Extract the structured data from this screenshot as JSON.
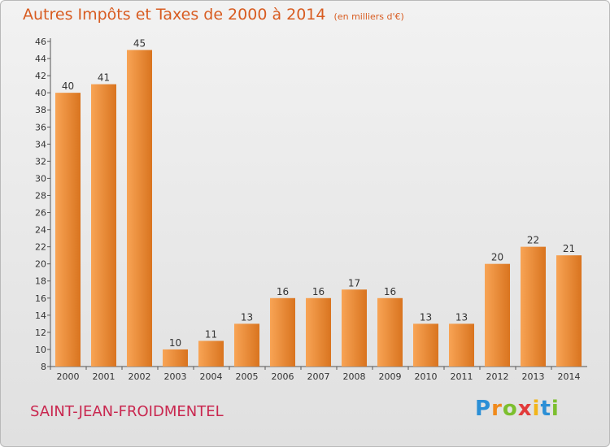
{
  "header": {
    "title": "Autres Impôts et Taxes de 2000 à 2014",
    "subtitle": "(en milliers d'€)"
  },
  "footer": {
    "commune": "SAINT-JEAN-FROIDMENTEL",
    "logo": [
      {
        "char": "P",
        "color": "#2b8fd6"
      },
      {
        "char": "r",
        "color": "#f08a1c"
      },
      {
        "char": "o",
        "color": "#7cbf2e"
      },
      {
        "char": "x",
        "color": "#e23a3a"
      },
      {
        "char": "i",
        "color": "#f2b51a"
      },
      {
        "char": "t",
        "color": "#2b8fd6"
      },
      {
        "char": "i",
        "color": "#7cbf2e"
      }
    ]
  },
  "colors": {
    "bar_light": "#f8a455",
    "bar_dark": "#d9741f",
    "title": "#d85c21",
    "commune": "#c9274f"
  },
  "chart_data": {
    "type": "bar",
    "categories": [
      "2000",
      "2001",
      "2002",
      "2003",
      "2004",
      "2005",
      "2006",
      "2007",
      "2008",
      "2009",
      "2010",
      "2011",
      "2012",
      "2013",
      "2014"
    ],
    "values": [
      40,
      41,
      45,
      10,
      11,
      13,
      16,
      16,
      17,
      16,
      13,
      13,
      20,
      22,
      21
    ],
    "yticks": [
      8,
      10,
      12,
      14,
      16,
      18,
      20,
      22,
      24,
      26,
      28,
      30,
      32,
      34,
      36,
      38,
      40,
      42,
      44,
      46
    ],
    "ylim": [
      8,
      46
    ],
    "grid": false,
    "xlabel": "",
    "ylabel": ""
  }
}
